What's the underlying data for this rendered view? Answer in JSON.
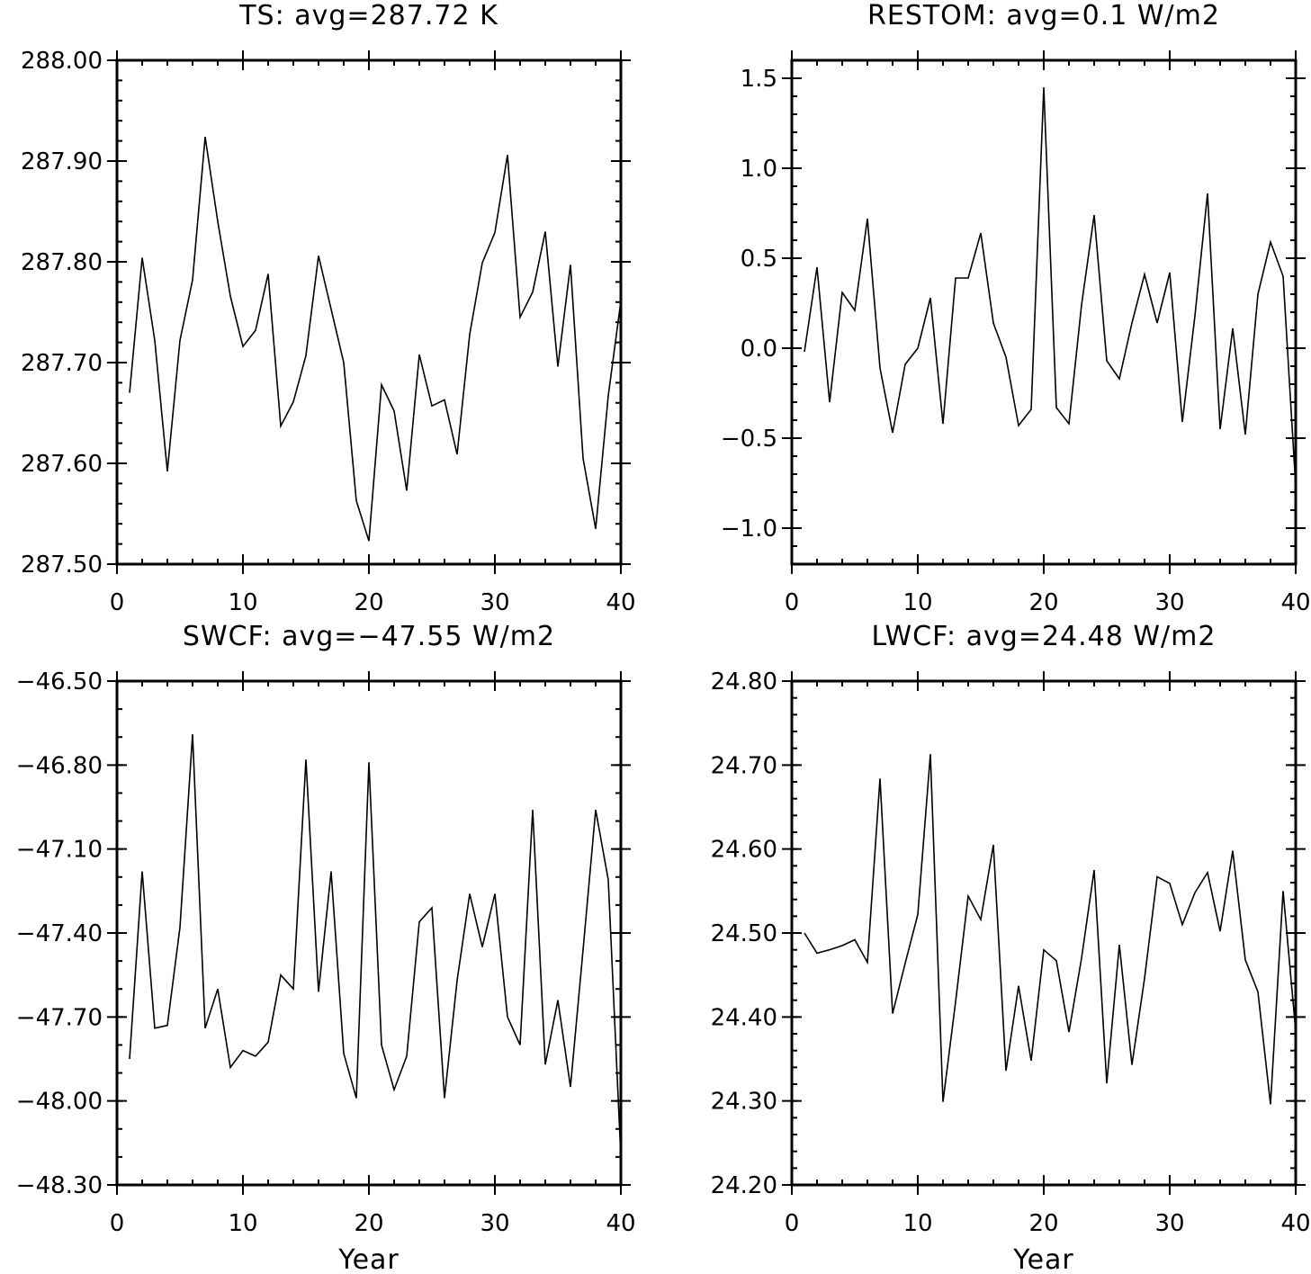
{
  "chart_data": [
    {
      "id": "ts",
      "type": "line",
      "title": "TS: avg=287.72 K",
      "xlabel": "",
      "ylabel": "",
      "xlim": [
        0,
        40
      ],
      "ylim": [
        287.5,
        288.0
      ],
      "x_ticks": [
        0,
        10,
        20,
        30,
        40
      ],
      "x_tick_labels": [
        "0",
        "10",
        "20",
        "30",
        "40"
      ],
      "x_minor_step": 2,
      "y_ticks": [
        287.5,
        287.6,
        287.7,
        287.8,
        287.9,
        288.0
      ],
      "y_tick_labels": [
        "287.50",
        "287.60",
        "287.70",
        "287.80",
        "287.90",
        "288.00"
      ],
      "y_minor_step": 0.02,
      "grid": false,
      "x": [
        1,
        2,
        3,
        4,
        5,
        6,
        7,
        8,
        9,
        10,
        11,
        12,
        13,
        14,
        15,
        16,
        17,
        18,
        19,
        20,
        21,
        22,
        23,
        24,
        25,
        26,
        27,
        28,
        29,
        30,
        31,
        32,
        33,
        34,
        35,
        36,
        37,
        38,
        39,
        40
      ],
      "values": [
        287.67,
        287.804,
        287.722,
        287.592,
        287.722,
        287.782,
        287.924,
        287.84,
        287.766,
        287.716,
        287.732,
        287.788,
        287.637,
        287.661,
        287.707,
        287.806,
        287.753,
        287.7,
        287.563,
        287.523,
        287.678,
        287.652,
        287.573,
        287.708,
        287.657,
        287.663,
        287.609,
        287.728,
        287.799,
        287.829,
        287.906,
        287.745,
        287.77,
        287.83,
        287.696,
        287.797,
        287.605,
        287.535,
        287.667,
        287.761
      ]
    },
    {
      "id": "restom",
      "type": "line",
      "title": "RESTOM: avg=0.1 W/m2",
      "xlabel": "",
      "ylabel": "",
      "xlim": [
        0,
        40
      ],
      "ylim": [
        -1.2,
        1.6
      ],
      "x_ticks": [
        0,
        10,
        20,
        30,
        40
      ],
      "x_tick_labels": [
        "0",
        "10",
        "20",
        "30",
        "40"
      ],
      "x_minor_step": 2,
      "y_ticks": [
        -1.0,
        -0.5,
        0.0,
        0.5,
        1.0,
        1.5
      ],
      "y_tick_labels": [
        "−1.0",
        "−0.5",
        "0.0",
        "0.5",
        "1.0",
        "1.5"
      ],
      "y_minor_step": 0.1,
      "grid": false,
      "x": [
        1,
        2,
        3,
        4,
        5,
        6,
        7,
        8,
        9,
        10,
        11,
        12,
        13,
        14,
        15,
        16,
        17,
        18,
        19,
        20,
        21,
        22,
        23,
        24,
        25,
        26,
        27,
        28,
        29,
        30,
        31,
        32,
        33,
        34,
        35,
        36,
        37,
        38,
        39,
        40
      ],
      "values": [
        -0.02,
        0.45,
        -0.3,
        0.31,
        0.21,
        0.72,
        -0.11,
        -0.47,
        -0.09,
        0.0,
        0.28,
        -0.42,
        0.39,
        0.39,
        0.64,
        0.14,
        -0.05,
        -0.43,
        -0.34,
        1.45,
        -0.33,
        -0.42,
        0.24,
        0.74,
        -0.07,
        -0.17,
        0.14,
        0.41,
        0.14,
        0.42,
        -0.41,
        0.18,
        0.86,
        -0.45,
        0.11,
        -0.48,
        0.3,
        0.59,
        0.4,
        -0.77
      ]
    },
    {
      "id": "swcf",
      "type": "line",
      "title": "SWCF: avg=−47.55 W/m2",
      "xlabel": "Year",
      "ylabel": "",
      "xlim": [
        0,
        40
      ],
      "ylim": [
        -48.3,
        -46.5
      ],
      "x_ticks": [
        0,
        10,
        20,
        30,
        40
      ],
      "x_tick_labels": [
        "0",
        "10",
        "20",
        "30",
        "40"
      ],
      "x_minor_step": 2,
      "y_ticks": [
        -48.3,
        -48.0,
        -47.7,
        -47.4,
        -47.1,
        -46.8,
        -46.5
      ],
      "y_tick_labels": [
        "−48.30",
        "−48.00",
        "−47.70",
        "−47.40",
        "−47.10",
        "−46.80",
        "−46.50"
      ],
      "y_minor_step": 0.1,
      "grid": false,
      "x": [
        1,
        2,
        3,
        4,
        5,
        6,
        7,
        8,
        9,
        10,
        11,
        12,
        13,
        14,
        15,
        16,
        17,
        18,
        19,
        20,
        21,
        22,
        23,
        24,
        25,
        26,
        27,
        28,
        29,
        30,
        31,
        32,
        33,
        34,
        35,
        36,
        37,
        38,
        39,
        40
      ],
      "values": [
        -47.85,
        -47.18,
        -47.74,
        -47.73,
        -47.38,
        -46.69,
        -47.74,
        -47.6,
        -47.88,
        -47.82,
        -47.84,
        -47.79,
        -47.55,
        -47.6,
        -46.78,
        -47.61,
        -47.18,
        -47.83,
        -47.99,
        -46.79,
        -47.8,
        -47.96,
        -47.84,
        -47.36,
        -47.31,
        -47.99,
        -47.57,
        -47.26,
        -47.45,
        -47.26,
        -47.7,
        -47.8,
        -46.96,
        -47.87,
        -47.64,
        -47.95,
        -47.46,
        -46.96,
        -47.21,
        -48.2
      ]
    },
    {
      "id": "lwcf",
      "type": "line",
      "title": "LWCF: avg=24.48 W/m2",
      "xlabel": "Year",
      "ylabel": "",
      "xlim": [
        0,
        40
      ],
      "ylim": [
        24.2,
        24.8
      ],
      "x_ticks": [
        0,
        10,
        20,
        30,
        40
      ],
      "x_tick_labels": [
        "0",
        "10",
        "20",
        "30",
        "40"
      ],
      "x_minor_step": 2,
      "y_ticks": [
        24.2,
        24.3,
        24.4,
        24.5,
        24.6,
        24.7,
        24.8
      ],
      "y_tick_labels": [
        "24.20",
        "24.30",
        "24.40",
        "24.50",
        "24.60",
        "24.70",
        "24.80"
      ],
      "y_minor_step": 0.02,
      "grid": false,
      "x": [
        1,
        2,
        3,
        4,
        5,
        6,
        7,
        8,
        9,
        10,
        11,
        12,
        13,
        14,
        15,
        16,
        17,
        18,
        19,
        20,
        21,
        22,
        23,
        24,
        25,
        26,
        27,
        28,
        29,
        30,
        31,
        32,
        33,
        34,
        35,
        36,
        37,
        38,
        39,
        40
      ],
      "values": [
        24.5,
        24.476,
        24.48,
        24.485,
        24.492,
        24.465,
        24.684,
        24.404,
        24.464,
        24.522,
        24.713,
        24.299,
        24.418,
        24.544,
        24.516,
        24.605,
        24.336,
        24.437,
        24.348,
        24.48,
        24.467,
        24.382,
        24.47,
        24.575,
        24.321,
        24.486,
        24.343,
        24.446,
        24.567,
        24.559,
        24.51,
        24.548,
        24.572,
        24.502,
        24.598,
        24.468,
        24.43,
        24.296,
        24.55,
        24.383
      ]
    }
  ]
}
